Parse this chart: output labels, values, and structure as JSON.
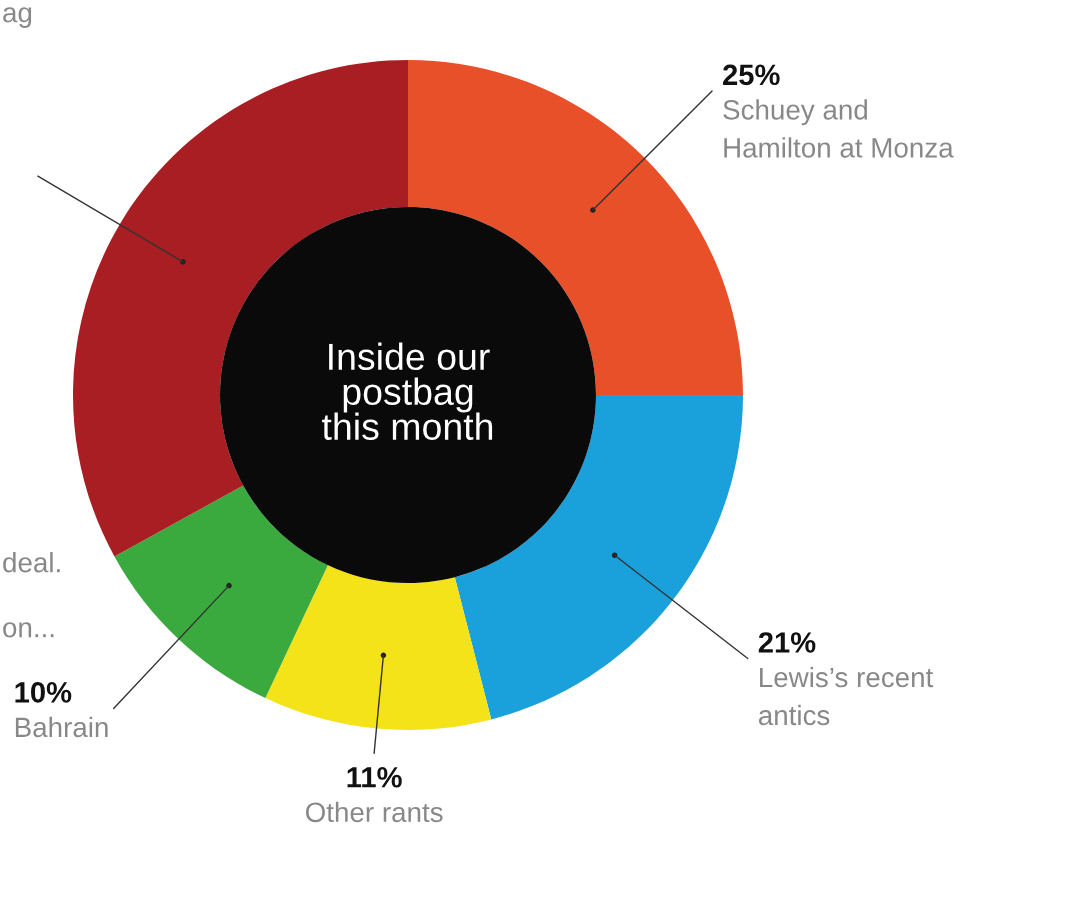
{
  "chart_data": {
    "type": "donut",
    "title": "Inside our\npostbag\nthis month",
    "categories": [
      "Schuey and\nHamilton at Monza",
      "Lewis’s recent\nantics",
      "Other rants",
      "Bahrain",
      null
    ],
    "values": [
      25,
      21,
      11,
      10,
      33
    ],
    "value_labels": [
      "25%",
      "21%",
      "11%",
      "10%",
      null
    ],
    "colors": [
      "#e8502a",
      "#1aa0db",
      "#f5e31a",
      "#3aaa3f",
      "#a81e22"
    ],
    "annotations": [
      "ag",
      "deal.",
      "on..."
    ],
    "legend": false
  }
}
